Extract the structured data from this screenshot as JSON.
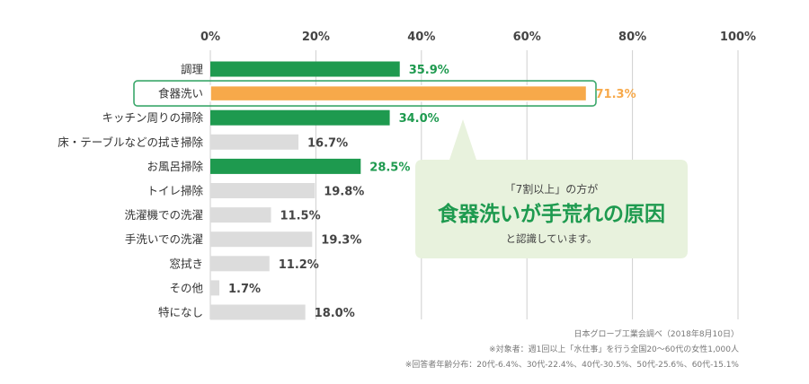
{
  "chart_data": {
    "type": "bar",
    "orientation": "horizontal",
    "xlim": [
      0,
      100
    ],
    "x_ticks": [
      "0%",
      "20%",
      "40%",
      "60%",
      "80%",
      "100%"
    ],
    "grid": true,
    "categories": [
      "調理",
      "食器洗い",
      "キッチン周りの掃除",
      "床・テーブルなどの拭き掃除",
      "お風呂掃除",
      "トイレ掃除",
      "洗濯機での洗濯",
      "手洗いでの洗濯",
      "窓拭き",
      "その他",
      "特になし"
    ],
    "values": [
      35.9,
      71.3,
      34.0,
      16.7,
      28.5,
      19.8,
      11.5,
      19.3,
      11.2,
      1.7,
      18.0
    ],
    "value_labels": [
      "35.9%",
      "71.3%",
      "34.0%",
      "16.7%",
      "28.5%",
      "19.8%",
      "11.5%",
      "19.3%",
      "11.2%",
      "1.7%",
      "18.0%"
    ],
    "bar_colors": [
      "#1e9a4f",
      "#f7a94a",
      "#1e9a4f",
      "#dcdcdc",
      "#1e9a4f",
      "#dcdcdc",
      "#dcdcdc",
      "#dcdcdc",
      "#dcdcdc",
      "#dcdcdc",
      "#dcdcdc"
    ],
    "label_colors": [
      "#1e9a4f",
      "#f7a94a",
      "#1e9a4f",
      "#444444",
      "#1e9a4f",
      "#444444",
      "#444444",
      "#444444",
      "#444444",
      "#444444",
      "#444444"
    ],
    "highlighted_index": 1,
    "highlight_border_color": "#3aa76a",
    "callout": {
      "line1": "「7割以上」の方が",
      "line2": "食器洗いが手荒れの原因",
      "line3": "と認識しています。",
      "background": "#e8f2dd"
    },
    "footnotes": [
      "日本グローブ工業会調べ（2018年8月10日）",
      "※対象者：週1回以上「水仕事」を行う全国20〜60代の女性1,000人",
      "※回答者年齢分布：20代-6.4%、30代-22.4%、40代-30.5%、50代-25.6%、60代-15.1%"
    ]
  }
}
